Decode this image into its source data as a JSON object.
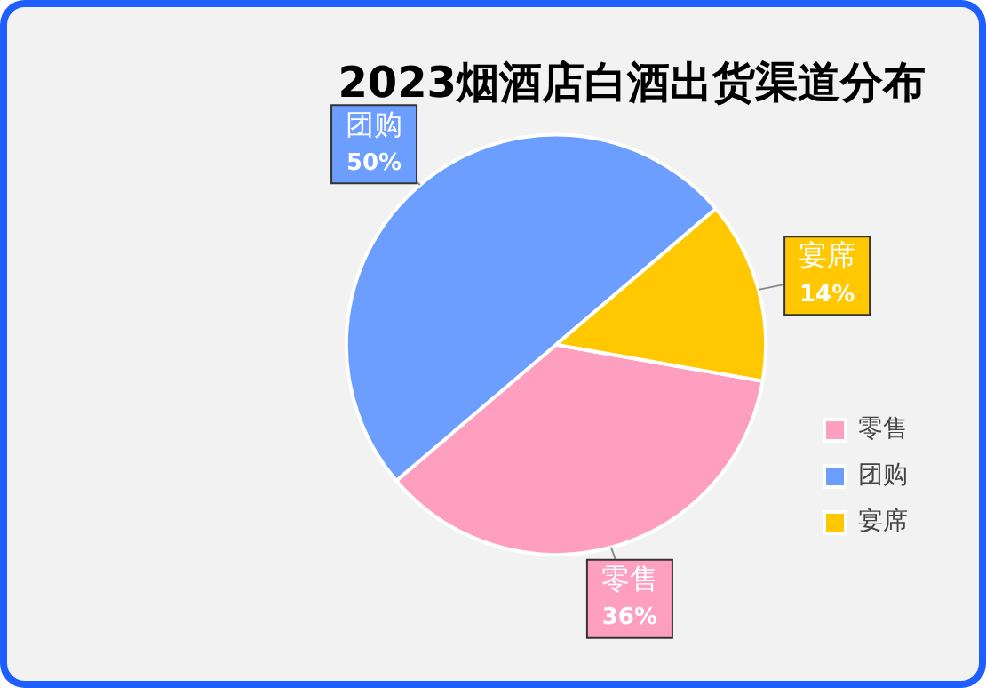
{
  "chart_data": {
    "type": "pie",
    "title": "2023烟酒店白酒出货渠道分布",
    "categories": [
      "零售",
      "团购",
      "宴席"
    ],
    "values": [
      36,
      50,
      14
    ],
    "value_labels": [
      "36%",
      "50%",
      "14%"
    ],
    "colors": [
      "#ff9fbf",
      "#6b9eff",
      "#ffc800"
    ],
    "legend": "bottom right"
  }
}
